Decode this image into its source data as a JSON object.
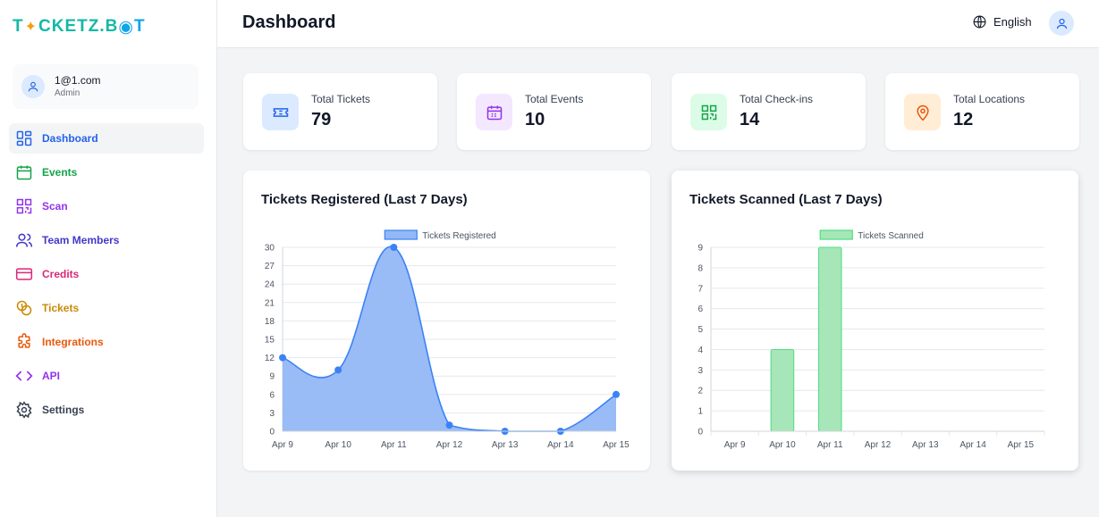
{
  "brand": {
    "logo_pre": "T",
    "logo_mid": "CKETZ.B",
    "logo_post": "T"
  },
  "user": {
    "email": "1@1.com",
    "role": "Admin"
  },
  "nav": [
    {
      "label": "Dashboard",
      "icon": "dashboard-icon",
      "color": "#2563eb",
      "active": true
    },
    {
      "label": "Events",
      "icon": "calendar-icon",
      "color": "#16a34a"
    },
    {
      "label": "Scan",
      "icon": "qr-code-icon",
      "color": "#9333ea"
    },
    {
      "label": "Team Members",
      "icon": "users-icon",
      "color": "#4338ca"
    },
    {
      "label": "Credits",
      "icon": "credit-card-icon",
      "color": "#db2777"
    },
    {
      "label": "Tickets",
      "icon": "coins-icon",
      "color": "#ca8a04"
    },
    {
      "label": "Integrations",
      "icon": "puzzle-icon",
      "color": "#ea580c"
    },
    {
      "label": "API",
      "icon": "code-icon",
      "color": "#9333ea"
    },
    {
      "label": "Settings",
      "icon": "gear-icon",
      "color": "#374151"
    }
  ],
  "header": {
    "title": "Dashboard",
    "language": "English"
  },
  "stats": [
    {
      "label": "Total Tickets",
      "value": "79",
      "icon": "ticket-icon",
      "color": "#2563eb",
      "bg": "#dbeafe"
    },
    {
      "label": "Total Events",
      "value": "10",
      "icon": "calendar-icon",
      "color": "#9333ea",
      "bg": "#f3e8ff"
    },
    {
      "label": "Total Check-ins",
      "value": "14",
      "icon": "qr-code-icon",
      "color": "#16a34a",
      "bg": "#dcfce7"
    },
    {
      "label": "Total Locations",
      "value": "12",
      "icon": "map-pin-icon",
      "color": "#ea580c",
      "bg": "#ffedd5"
    }
  ],
  "chart_data": [
    {
      "type": "area",
      "title": "Tickets Registered (Last 7 Days)",
      "categories": [
        "Apr 9",
        "Apr 10",
        "Apr 11",
        "Apr 12",
        "Apr 13",
        "Apr 14",
        "Apr 15"
      ],
      "series": [
        {
          "name": "Tickets Registered",
          "values": [
            12,
            10,
            30,
            1,
            0,
            0,
            6
          ]
        }
      ],
      "yticks": [
        0,
        3,
        6,
        9,
        12,
        15,
        18,
        21,
        24,
        27,
        30
      ],
      "ylim": [
        0,
        30
      ],
      "legend": "top",
      "grid": true,
      "color": "#3b82f6",
      "fill": "#93b8f6"
    },
    {
      "type": "bar",
      "title": "Tickets Scanned (Last 7 Days)",
      "categories": [
        "Apr 9",
        "Apr 10",
        "Apr 11",
        "Apr 12",
        "Apr 13",
        "Apr 14",
        "Apr 15"
      ],
      "series": [
        {
          "name": "Tickets Scanned",
          "values": [
            0,
            4,
            9,
            0,
            0,
            0,
            0
          ]
        }
      ],
      "yticks": [
        0,
        1,
        2,
        3,
        4,
        5,
        6,
        7,
        8,
        9
      ],
      "ylim": [
        0,
        9
      ],
      "legend": "top",
      "grid": true,
      "color": "#4ade80",
      "fill": "#a7e6b8"
    }
  ]
}
